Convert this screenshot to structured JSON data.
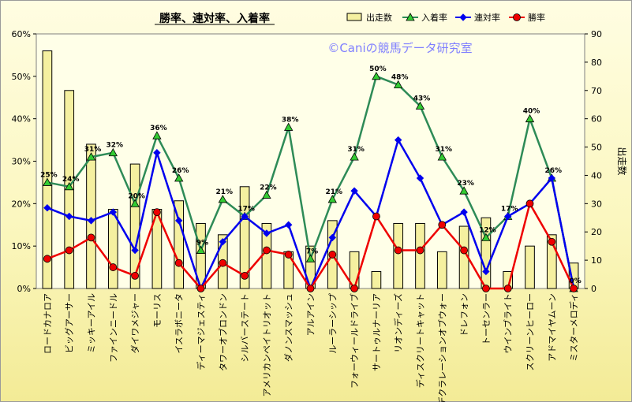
{
  "chart_data": {
    "type": "bar",
    "title": "勝率、連対率、入着率",
    "watermark": "©Caniの競馬データ研究室",
    "categories": [
      "ロードカナロア",
      "ビッグアーサー",
      "ミッキーアイル",
      "ファインニードル",
      "ダイワメジャー",
      "モーリス",
      "イスラボニータ",
      "ディーマジェスティ",
      "タワーオブロンドン",
      "シルバーステート",
      "アメリカンペイトリオット",
      "ダノンスマッシュ",
      "アルアイン",
      "ルーラーシップ",
      "フォーウィールドライブ",
      "サートゥルナーリア",
      "リオンディーズ",
      "ディスクリートキャット",
      "デクラレーションオブウォー",
      "ドレフォン",
      "トーセンラー",
      "ウインブライト",
      "スクリーンヒーロー",
      "アドマイヤムーン",
      "ミスターメロディ"
    ],
    "series": [
      {
        "name": "出走数",
        "type": "bar",
        "axis": "right",
        "color": "#f5f0a0",
        "values": [
          84,
          70,
          51,
          28,
          44,
          28,
          31,
          23,
          19,
          36,
          23,
          13,
          15,
          24,
          13,
          6,
          23,
          23,
          13,
          22,
          25,
          6,
          15,
          19,
          9
        ]
      },
      {
        "name": "入着率",
        "type": "line",
        "axis": "left",
        "color": "#2e8b57",
        "values": [
          25,
          24,
          31,
          32,
          20,
          36,
          26,
          9,
          21,
          17,
          22,
          38,
          7,
          21,
          31,
          50,
          48,
          43,
          31,
          23,
          12,
          17,
          40,
          26,
          0
        ]
      },
      {
        "name": "連対率",
        "type": "line",
        "axis": "left",
        "color": "#0000ee",
        "values": [
          19,
          17,
          16,
          18,
          9,
          32,
          16,
          0,
          11,
          17,
          13,
          15,
          0,
          12,
          23,
          17,
          35,
          26,
          15,
          18,
          4,
          17,
          20,
          26,
          0
        ]
      },
      {
        "name": "勝率",
        "type": "line",
        "axis": "left",
        "color": "#ee0000",
        "values": [
          7,
          9,
          12,
          5,
          3,
          18,
          6,
          0,
          6,
          3,
          9,
          8,
          0,
          8,
          0,
          17,
          9,
          9,
          15,
          9,
          0,
          0,
          20,
          11,
          0
        ]
      }
    ],
    "point_labels": {
      "series": "入着率",
      "labels": [
        "25%",
        "24%",
        "31%",
        "32%",
        "20%",
        "36%",
        "26%",
        "9%",
        "21%",
        "17%",
        "22%",
        "38%",
        "7%",
        "21%",
        "31%",
        "50%",
        "48%",
        "43%",
        "31%",
        "23%",
        "12%",
        "17%",
        "40%",
        "26%",
        "0%"
      ]
    },
    "left_axis": {
      "ticks": [
        "0%",
        "10%",
        "20%",
        "30%",
        "40%",
        "50%",
        "60%"
      ],
      "min": 0,
      "max": 60
    },
    "right_axis": {
      "label": "出走数",
      "ticks": [
        "0",
        "10",
        "20",
        "30",
        "40",
        "50",
        "60",
        "70",
        "80",
        "90"
      ],
      "min": 0,
      "max": 90
    },
    "legend_position": "top",
    "grid": false
  }
}
